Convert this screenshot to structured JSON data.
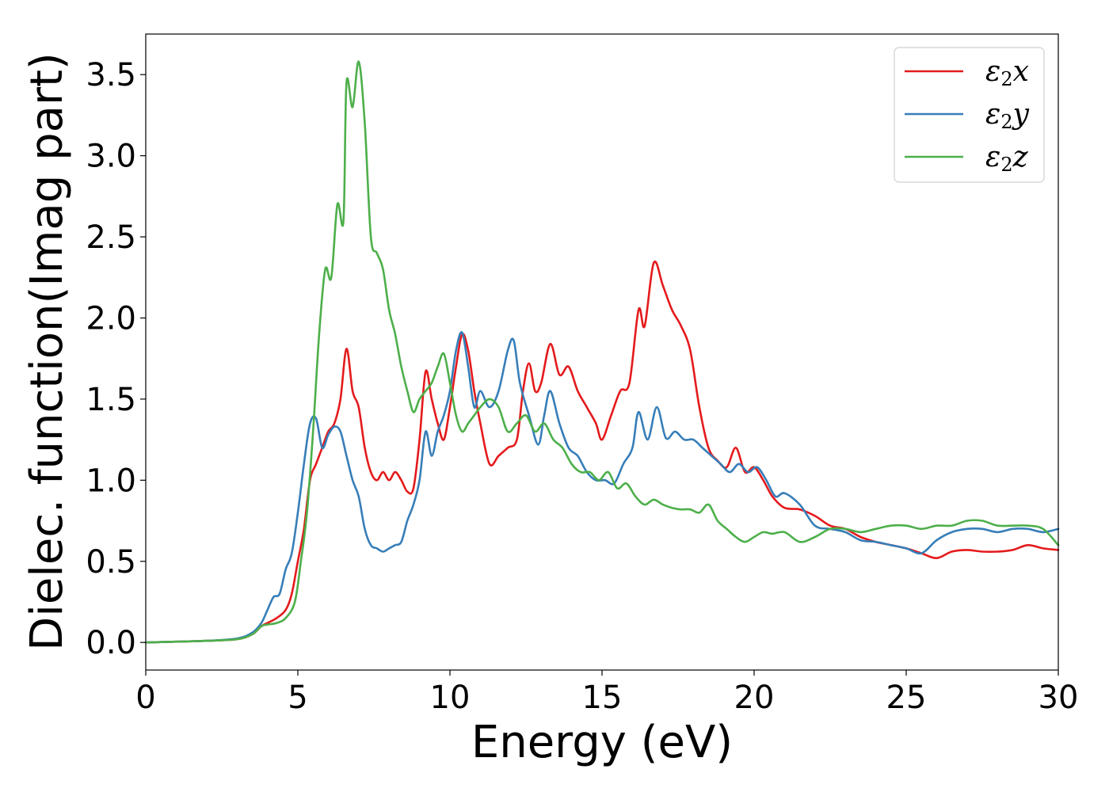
{
  "chart_data": {
    "type": "line",
    "title": "",
    "xlabel": "Energy (eV)",
    "ylabel": "Dielec. function(Imag part)",
    "xlim": [
      0,
      30
    ],
    "ylim": [
      -0.17,
      3.75
    ],
    "xticks": [
      0,
      5,
      10,
      15,
      20,
      25,
      30
    ],
    "xtick_labels": [
      "0",
      "5",
      "10",
      "15",
      "20",
      "25",
      "30"
    ],
    "yticks": [
      0.0,
      0.5,
      1.0,
      1.5,
      2.0,
      2.5,
      3.0,
      3.5
    ],
    "ytick_labels": [
      "0.0",
      "0.5",
      "1.0",
      "1.5",
      "2.0",
      "2.5",
      "3.0",
      "3.5"
    ],
    "grid": false,
    "legend_position": "top-right",
    "series": [
      {
        "name": "ε2x",
        "legend_base": "ε",
        "legend_sub": "2",
        "legend_tail": "x",
        "color": "#e41a1c",
        "x": [
          0,
          1,
          2,
          3,
          3.5,
          3.8,
          4.0,
          4.3,
          4.6,
          4.8,
          5.0,
          5.2,
          5.4,
          5.6,
          5.8,
          6.0,
          6.2,
          6.4,
          6.6,
          6.8,
          7.0,
          7.2,
          7.4,
          7.6,
          7.8,
          8.0,
          8.2,
          8.4,
          8.6,
          8.8,
          9.0,
          9.2,
          9.4,
          9.6,
          9.8,
          10.0,
          10.2,
          10.4,
          10.6,
          10.8,
          11.0,
          11.3,
          11.6,
          11.9,
          12.2,
          12.4,
          12.6,
          12.8,
          13.0,
          13.3,
          13.6,
          13.9,
          14.2,
          14.5,
          14.8,
          15.0,
          15.3,
          15.6,
          15.9,
          16.2,
          16.4,
          16.7,
          17.0,
          17.3,
          17.6,
          17.9,
          18.2,
          18.5,
          18.8,
          19.1,
          19.4,
          19.7,
          20.0,
          20.3,
          20.6,
          21.0,
          21.5,
          22.0,
          22.5,
          23.0,
          23.5,
          24.0,
          24.5,
          25.0,
          25.5,
          26.0,
          26.5,
          27.0,
          27.5,
          28.0,
          28.5,
          29.0,
          29.5,
          30.0
        ],
        "values": [
          0.0,
          0.005,
          0.01,
          0.02,
          0.05,
          0.1,
          0.12,
          0.15,
          0.2,
          0.3,
          0.5,
          0.7,
          1.0,
          1.1,
          1.2,
          1.3,
          1.35,
          1.5,
          1.81,
          1.55,
          1.45,
          1.2,
          1.05,
          1.0,
          1.05,
          1.0,
          1.05,
          1.0,
          0.93,
          0.95,
          1.25,
          1.67,
          1.5,
          1.35,
          1.25,
          1.45,
          1.7,
          1.9,
          1.8,
          1.55,
          1.35,
          1.1,
          1.15,
          1.2,
          1.25,
          1.55,
          1.72,
          1.55,
          1.6,
          1.84,
          1.65,
          1.7,
          1.55,
          1.45,
          1.35,
          1.25,
          1.4,
          1.55,
          1.6,
          2.05,
          1.95,
          2.34,
          2.2,
          2.05,
          1.95,
          1.8,
          1.45,
          1.2,
          1.12,
          1.08,
          1.2,
          1.05,
          1.08,
          1.0,
          0.9,
          0.83,
          0.82,
          0.78,
          0.72,
          0.7,
          0.65,
          0.62,
          0.6,
          0.58,
          0.55,
          0.52,
          0.56,
          0.57,
          0.56,
          0.56,
          0.57,
          0.6,
          0.58,
          0.57
        ]
      },
      {
        "name": "ε2y",
        "legend_base": "ε",
        "legend_sub": "2",
        "legend_tail": "y",
        "color": "#377eb8",
        "x": [
          0,
          1,
          2,
          3,
          3.5,
          3.8,
          4.0,
          4.2,
          4.4,
          4.6,
          4.8,
          5.0,
          5.2,
          5.4,
          5.6,
          5.8,
          6.0,
          6.2,
          6.4,
          6.6,
          6.8,
          7.0,
          7.2,
          7.4,
          7.6,
          7.8,
          8.0,
          8.2,
          8.4,
          8.6,
          8.8,
          9.0,
          9.2,
          9.4,
          9.6,
          9.8,
          10.0,
          10.2,
          10.4,
          10.6,
          10.8,
          11.0,
          11.3,
          11.6,
          11.9,
          12.1,
          12.3,
          12.6,
          12.9,
          13.1,
          13.3,
          13.6,
          13.9,
          14.2,
          14.5,
          14.8,
          15.1,
          15.4,
          15.7,
          16.0,
          16.2,
          16.5,
          16.8,
          17.1,
          17.4,
          17.7,
          18.0,
          18.3,
          18.6,
          18.9,
          19.2,
          19.5,
          19.8,
          20.1,
          20.4,
          20.7,
          21.0,
          21.5,
          22.0,
          22.5,
          23.0,
          23.5,
          24.0,
          24.5,
          25.0,
          25.5,
          26.0,
          26.5,
          27.0,
          27.5,
          28.0,
          28.5,
          29.0,
          29.5,
          30.0
        ],
        "values": [
          0.0,
          0.005,
          0.01,
          0.025,
          0.06,
          0.12,
          0.2,
          0.28,
          0.3,
          0.45,
          0.55,
          0.8,
          1.1,
          1.35,
          1.38,
          1.2,
          1.28,
          1.33,
          1.3,
          1.15,
          1.0,
          0.9,
          0.7,
          0.6,
          0.58,
          0.56,
          0.58,
          0.6,
          0.62,
          0.75,
          0.85,
          1.0,
          1.3,
          1.15,
          1.3,
          1.4,
          1.55,
          1.8,
          1.91,
          1.7,
          1.45,
          1.55,
          1.45,
          1.55,
          1.8,
          1.86,
          1.6,
          1.4,
          1.22,
          1.4,
          1.55,
          1.35,
          1.2,
          1.15,
          1.05,
          1.0,
          1.0,
          0.98,
          1.1,
          1.2,
          1.42,
          1.25,
          1.45,
          1.26,
          1.3,
          1.25,
          1.25,
          1.2,
          1.15,
          1.1,
          1.05,
          1.1,
          1.05,
          1.08,
          1.0,
          0.9,
          0.92,
          0.85,
          0.72,
          0.7,
          0.68,
          0.63,
          0.62,
          0.6,
          0.58,
          0.55,
          0.63,
          0.68,
          0.7,
          0.7,
          0.68,
          0.7,
          0.7,
          0.68,
          0.7
        ]
      },
      {
        "name": "ε2z",
        "legend_base": "ε",
        "legend_sub": "2",
        "legend_tail": "z",
        "color": "#4daf4a",
        "x": [
          0,
          1,
          2,
          3,
          3.5,
          3.8,
          4.0,
          4.3,
          4.6,
          4.9,
          5.1,
          5.3,
          5.5,
          5.7,
          5.9,
          6.1,
          6.3,
          6.5,
          6.6,
          6.8,
          7.0,
          7.2,
          7.4,
          7.6,
          7.8,
          8.0,
          8.2,
          8.4,
          8.6,
          8.8,
          9.0,
          9.2,
          9.4,
          9.6,
          9.8,
          10.0,
          10.2,
          10.4,
          10.6,
          10.8,
          11.0,
          11.3,
          11.6,
          11.9,
          12.2,
          12.5,
          12.8,
          13.1,
          13.4,
          13.7,
          14.0,
          14.3,
          14.6,
          14.9,
          15.2,
          15.5,
          15.8,
          16.1,
          16.4,
          16.7,
          17.0,
          17.3,
          17.6,
          17.9,
          18.2,
          18.5,
          18.8,
          19.1,
          19.4,
          19.7,
          20.0,
          20.3,
          20.6,
          21.0,
          21.5,
          22.0,
          22.5,
          23.0,
          23.5,
          24.0,
          24.5,
          25.0,
          25.5,
          26.0,
          26.5,
          27.0,
          27.5,
          28.0,
          28.5,
          29.0,
          29.5,
          30.0
        ],
        "values": [
          0.0,
          0.005,
          0.01,
          0.02,
          0.05,
          0.1,
          0.11,
          0.12,
          0.15,
          0.25,
          0.5,
          0.8,
          1.3,
          1.9,
          2.3,
          2.25,
          2.7,
          2.6,
          3.45,
          3.3,
          3.58,
          3.2,
          2.5,
          2.4,
          2.3,
          2.05,
          1.9,
          1.7,
          1.55,
          1.42,
          1.5,
          1.55,
          1.6,
          1.7,
          1.78,
          1.6,
          1.4,
          1.3,
          1.35,
          1.4,
          1.45,
          1.5,
          1.45,
          1.3,
          1.35,
          1.4,
          1.3,
          1.35,
          1.25,
          1.2,
          1.1,
          1.05,
          1.05,
          1.0,
          1.05,
          0.95,
          0.98,
          0.9,
          0.85,
          0.88,
          0.85,
          0.83,
          0.82,
          0.82,
          0.8,
          0.85,
          0.75,
          0.7,
          0.65,
          0.62,
          0.65,
          0.68,
          0.67,
          0.68,
          0.62,
          0.65,
          0.7,
          0.7,
          0.68,
          0.7,
          0.72,
          0.72,
          0.7,
          0.72,
          0.72,
          0.75,
          0.75,
          0.72,
          0.72,
          0.72,
          0.7,
          0.6
        ]
      }
    ]
  }
}
